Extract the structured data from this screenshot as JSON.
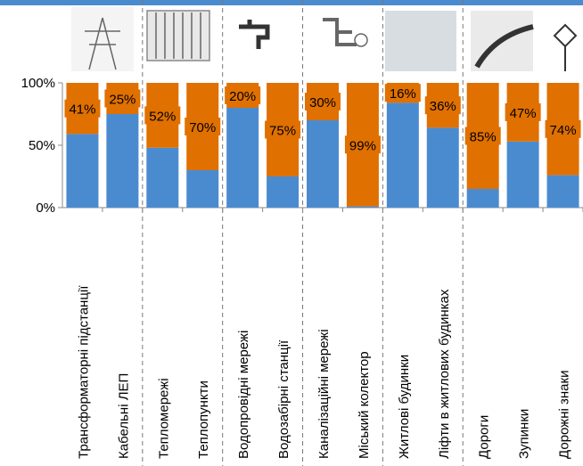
{
  "chart_data": {
    "type": "stacked_bar",
    "categories": [
      "Трансформаторні підстанції",
      "Кабельні ЛЕП",
      "Тепломережі",
      "Теплопункти",
      "Водопровідні мережі",
      "Водозабірні станції",
      "Каналізаційні мережі",
      "Міський колектор",
      "Житлові будинки",
      "Ліфти в житлових будинках",
      "Дороги",
      "Зупинки",
      "Дорожні знаки"
    ],
    "series": [
      {
        "color": "#4a8bd0",
        "values": [
          59,
          75,
          48,
          30,
          80,
          25,
          70,
          1,
          84,
          64,
          15,
          53,
          26
        ]
      },
      {
        "color": "#e07000",
        "values": [
          41,
          25,
          52,
          70,
          20,
          75,
          30,
          99,
          16,
          36,
          85,
          47,
          74
        ],
        "value_labels": [
          "41%",
          "25%",
          "52%",
          "70%",
          "20%",
          "75%",
          "30%",
          "99%",
          "16%",
          "36%",
          "85%",
          "47%",
          "74%"
        ]
      }
    ],
    "ylim": [
      0,
      100
    ],
    "yticks": [
      {
        "value": 0,
        "label": "0%"
      },
      {
        "value": 50,
        "label": "50%"
      },
      {
        "value": 100,
        "label": "100%"
      }
    ]
  }
}
